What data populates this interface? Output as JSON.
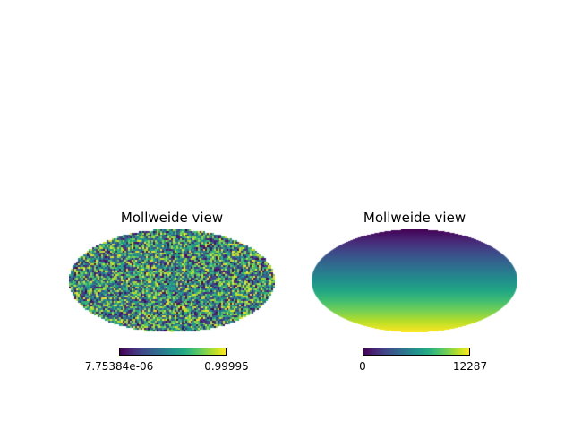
{
  "colors": {
    "background": "#ffffff",
    "text": "#000000",
    "viridis_stops": [
      "#440154",
      "#482475",
      "#414487",
      "#355f8d",
      "#2a788e",
      "#21918c",
      "#22a884",
      "#44bf70",
      "#7ad151",
      "#bddf26",
      "#fde725"
    ]
  },
  "chart_data": [
    {
      "type": "heatmap",
      "projection": "mollweide",
      "title": "Mollweide view",
      "colormap": "viridis",
      "pattern": "random-uniform",
      "vmin": 7.75384e-06,
      "vmax": 0.99995,
      "colorbar": {
        "orientation": "horizontal",
        "min_label": "7.75384e-06",
        "max_label": "0.99995"
      }
    },
    {
      "type": "heatmap",
      "projection": "mollweide",
      "title": "Mollweide view",
      "colormap": "viridis",
      "pattern": "vertical-gradient",
      "gradient_direction": "top-to-bottom",
      "vmin": 0,
      "vmax": 12287,
      "colorbar": {
        "orientation": "horizontal",
        "min_label": "0",
        "max_label": "12287"
      }
    }
  ]
}
